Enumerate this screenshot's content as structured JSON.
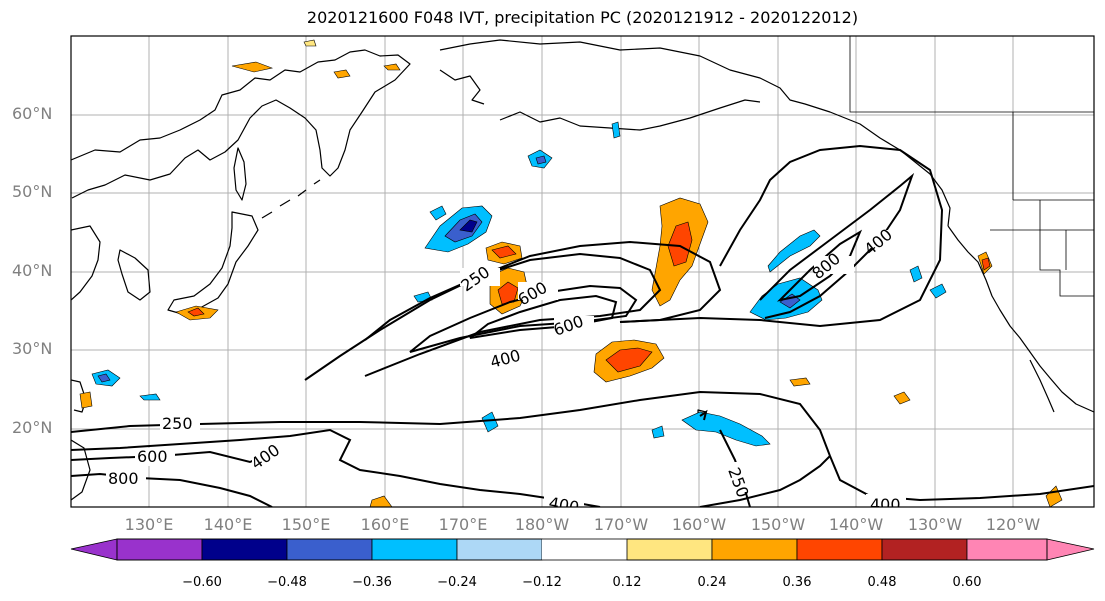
{
  "title": "2020121600 F048 IVT, precipitation PC (2020121912 - 2020122012)",
  "lat_labels": [
    "60°N",
    "50°N",
    "40°N",
    "30°N",
    "20°N"
  ],
  "lon_labels": [
    "130°E",
    "140°E",
    "150°E",
    "160°E",
    "170°E",
    "180°W",
    "170°W",
    "160°W",
    "150°W",
    "140°W",
    "130°W",
    "120°W"
  ],
  "ivt_contour_levels": [
    "250",
    "400",
    "600",
    "800"
  ],
  "contour_labels": [
    "250",
    "600",
    "800",
    "400",
    "250",
    "600",
    "400",
    "250",
    "600",
    "800",
    "400",
    "400",
    "250",
    "400"
  ],
  "colorbar": {
    "ticks": [
      "−0.60",
      "−0.48",
      "−0.36",
      "−0.24",
      "−0.12",
      "0.12",
      "0.24",
      "0.36",
      "0.48",
      "0.60"
    ],
    "colors": [
      "#9932cc",
      "#00008b",
      "#3a5fcd",
      "#00bfff",
      "#add8f6",
      "#ffffff",
      "#ffe680",
      "#ffa500",
      "#ff4500",
      "#b22222",
      "#ff85b4"
    ]
  },
  "colors": {
    "neg_strong": "#3a5fcd",
    "neg_mid": "#00bfff",
    "neg_light": "#add8f6",
    "pos_light": "#ffe680",
    "pos_mid": "#ffa500",
    "pos_strong": "#ff4500"
  }
}
